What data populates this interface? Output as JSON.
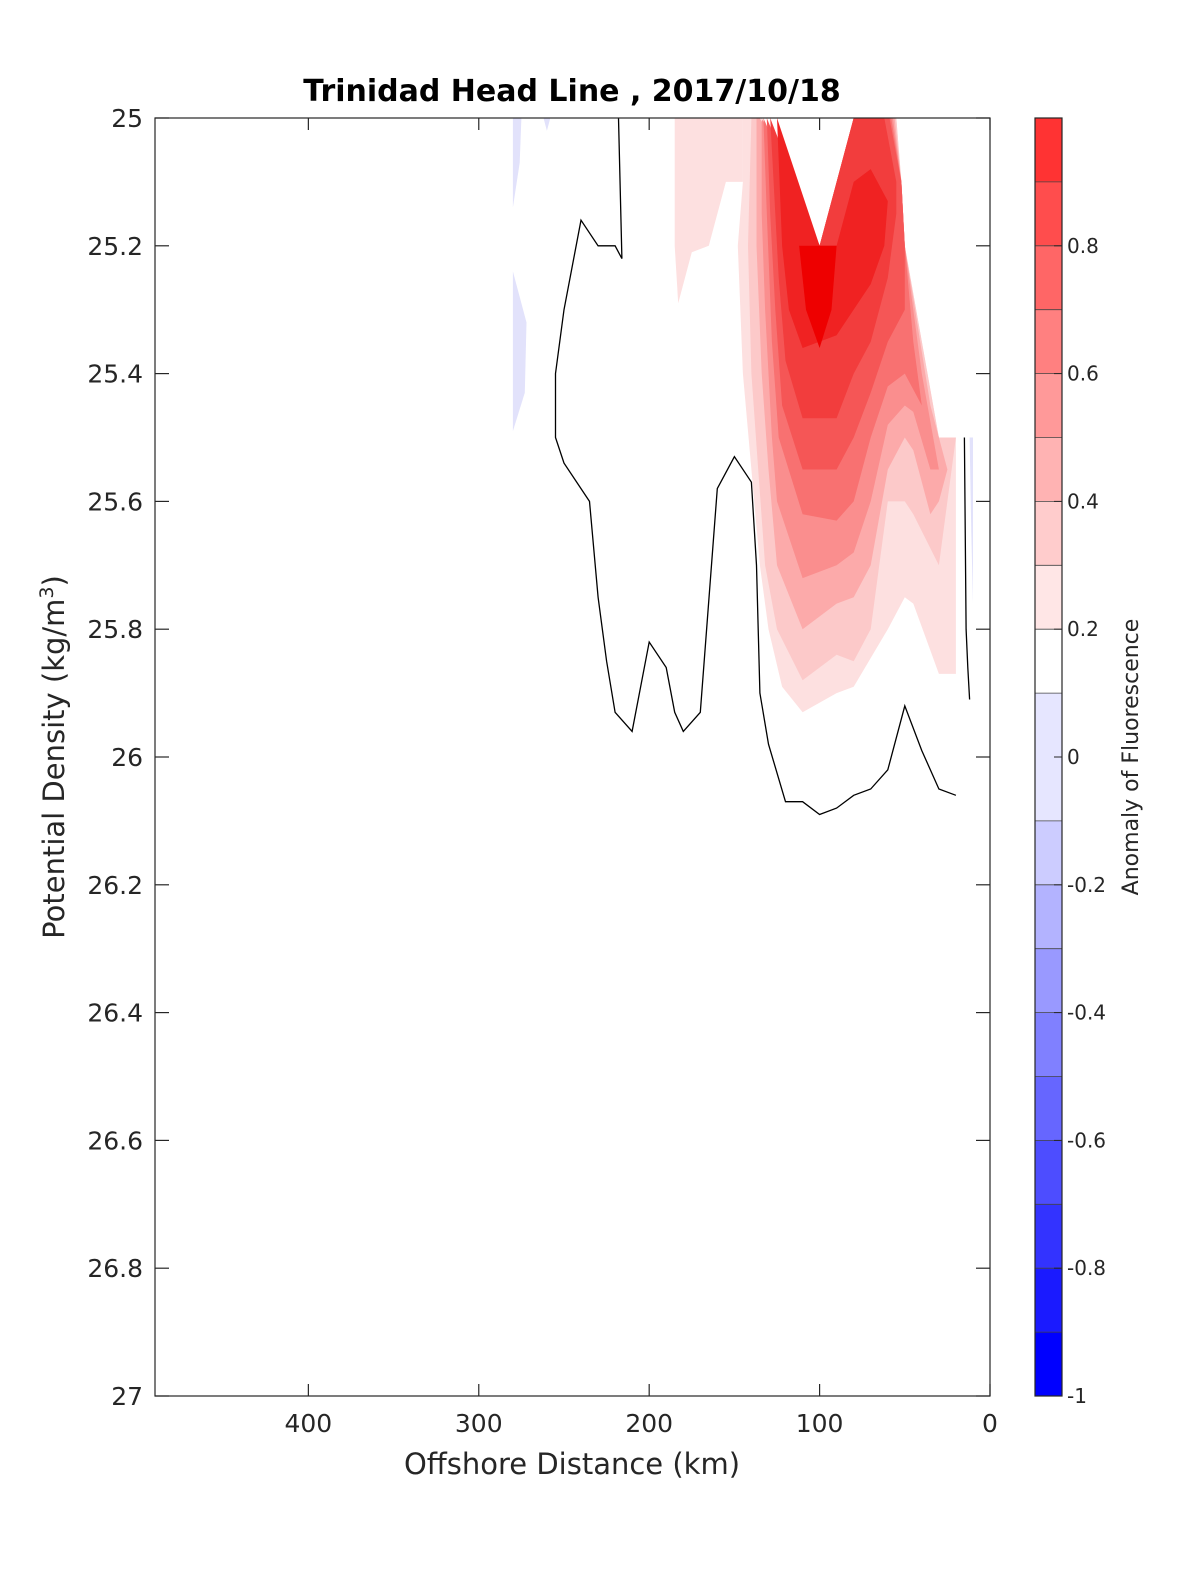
{
  "chart_data": {
    "type": "contourf",
    "title": "Trinidad Head Line , 2017/10/18",
    "xlabel": "Offshore Distance (km)",
    "ylabel": "Potential Density (kg/m³)",
    "ylabel_base": "Potential Density (kg/m",
    "ylabel_sup": "3",
    "ylabel_tail": ")",
    "xlim": [
      490,
      0
    ],
    "x_reversed": true,
    "ylim": [
      25,
      27
    ],
    "y_reversed": true,
    "x_ticks": [
      400,
      300,
      200,
      100,
      0
    ],
    "x_tick_labels": [
      "400",
      "300",
      "200",
      "100",
      "0"
    ],
    "y_ticks": [
      25,
      25.2,
      25.4,
      25.6,
      25.8,
      26,
      26.2,
      26.4,
      26.6,
      26.8,
      27
    ],
    "y_tick_labels": [
      "25",
      "25.2",
      "25.4",
      "25.6",
      "25.8",
      "26",
      "26.2",
      "26.4",
      "26.6",
      "26.8",
      "27"
    ],
    "colorbar": {
      "label": "Anomaly of Fluorescence",
      "range": [
        -1,
        1
      ],
      "levels": [
        -1,
        -0.9,
        -0.8,
        -0.7,
        -0.6,
        -0.5,
        -0.4,
        -0.3,
        -0.2,
        -0.1,
        0.1,
        0.2,
        0.3,
        0.4,
        0.5,
        0.6,
        0.7,
        0.8,
        0.9,
        1.0
      ],
      "tick_values": [
        -1,
        -0.8,
        -0.6,
        -0.4,
        -0.2,
        0,
        0.2,
        0.4,
        0.6,
        0.8
      ],
      "tick_labels": [
        "-1",
        "-0.8",
        "-0.6",
        "-0.4",
        "-0.2",
        "0",
        "0.2",
        "0.4",
        "0.6",
        "0.8"
      ],
      "colors": [
        "#0000ff",
        "#1a1aff",
        "#3333ff",
        "#4d4dff",
        "#6666ff",
        "#8080ff",
        "#9999ff",
        "#b3b3ff",
        "#ccccff",
        "#e6e6ff",
        "#ffffff",
        "#ffe6e6",
        "#ffcccc",
        "#ffb3b3",
        "#ff9999",
        "#ff8080",
        "#ff6666",
        "#ff4d4d",
        "#ff3333",
        "#ff1a1a",
        "#ff0000"
      ]
    },
    "filled_regions": [
      {
        "level": 0.1,
        "color": "#fde0e0",
        "points": [
          [
            185,
            25
          ],
          [
            185,
            25.2
          ],
          [
            183,
            25.29
          ],
          [
            175,
            25.21
          ],
          [
            165,
            25.2
          ],
          [
            155,
            25.1
          ],
          [
            150,
            25.1
          ],
          [
            145,
            25.1
          ],
          [
            145,
            25
          ]
        ]
      },
      {
        "level": 0.1,
        "color": "#fde0e0",
        "points": [
          [
            145,
            25
          ],
          [
            135,
            25
          ],
          [
            100,
            25.2
          ],
          [
            80,
            25
          ],
          [
            55,
            25
          ],
          [
            52,
            25.1
          ],
          [
            50,
            25.2
          ],
          [
            30,
            25.5
          ],
          [
            20,
            25.5
          ],
          [
            20,
            25.6
          ],
          [
            20,
            25.7
          ],
          [
            20,
            25.87
          ],
          [
            30,
            25.87
          ],
          [
            45,
            25.76
          ],
          [
            50,
            25.75
          ],
          [
            60,
            25.8
          ],
          [
            80,
            25.89
          ],
          [
            90,
            25.9
          ],
          [
            110,
            25.93
          ],
          [
            122,
            25.89
          ],
          [
            130,
            25.8
          ],
          [
            135,
            25.7
          ],
          [
            140,
            25.55
          ],
          [
            145,
            25.4
          ],
          [
            148,
            25.2
          ],
          [
            145,
            25.1
          ]
        ]
      },
      {
        "level": 0.2,
        "color": "#fcc9c9",
        "points": [
          [
            135,
            25
          ],
          [
            100,
            25.2
          ],
          [
            80,
            25
          ],
          [
            55,
            25
          ],
          [
            52,
            25.1
          ],
          [
            50,
            25.2
          ],
          [
            30,
            25.5
          ],
          [
            20,
            25.5
          ],
          [
            25,
            25.6
          ],
          [
            30,
            25.7
          ],
          [
            45,
            25.62
          ],
          [
            50,
            25.6
          ],
          [
            60,
            25.6
          ],
          [
            70,
            25.8
          ],
          [
            80,
            25.85
          ],
          [
            90,
            25.84
          ],
          [
            110,
            25.88
          ],
          [
            125,
            25.8
          ],
          [
            132,
            25.7
          ],
          [
            136,
            25.55
          ],
          [
            140,
            25.4
          ],
          [
            142,
            25.2
          ],
          [
            140,
            25
          ]
        ]
      },
      {
        "level": 0.3,
        "color": "#fcaaaa",
        "points": [
          [
            135,
            25
          ],
          [
            100,
            25.2
          ],
          [
            80,
            25
          ],
          [
            56,
            25
          ],
          [
            52,
            25.1
          ],
          [
            50,
            25.2
          ],
          [
            35,
            25.45
          ],
          [
            25,
            25.55
          ],
          [
            30,
            25.6
          ],
          [
            35,
            25.62
          ],
          [
            45,
            25.52
          ],
          [
            50,
            25.5
          ],
          [
            60,
            25.55
          ],
          [
            70,
            25.7
          ],
          [
            80,
            25.75
          ],
          [
            90,
            25.76
          ],
          [
            110,
            25.8
          ],
          [
            125,
            25.7
          ],
          [
            130,
            25.55
          ],
          [
            134,
            25.4
          ],
          [
            137,
            25.2
          ],
          [
            137,
            25
          ]
        ]
      },
      {
        "level": 0.4,
        "color": "#fa8e8e",
        "points": [
          [
            134,
            25
          ],
          [
            100,
            25.2
          ],
          [
            80,
            25
          ],
          [
            57,
            25
          ],
          [
            52,
            25.1
          ],
          [
            50,
            25.2
          ],
          [
            40,
            25.4
          ],
          [
            30,
            25.55
          ],
          [
            35,
            25.55
          ],
          [
            45,
            25.46
          ],
          [
            50,
            25.45
          ],
          [
            60,
            25.48
          ],
          [
            70,
            25.6
          ],
          [
            80,
            25.68
          ],
          [
            90,
            25.7
          ],
          [
            110,
            25.72
          ],
          [
            125,
            25.6
          ],
          [
            128,
            25.5
          ],
          [
            132,
            25.3
          ],
          [
            134,
            25.15
          ]
        ]
      },
      {
        "level": 0.5,
        "color": "#f87171",
        "points": [
          [
            133,
            25
          ],
          [
            100,
            25.2
          ],
          [
            80,
            25
          ],
          [
            58,
            25
          ],
          [
            52,
            25.1
          ],
          [
            50,
            25.2
          ],
          [
            45,
            25.35
          ],
          [
            40,
            25.45
          ],
          [
            50,
            25.4
          ],
          [
            60,
            25.42
          ],
          [
            70,
            25.5
          ],
          [
            80,
            25.6
          ],
          [
            90,
            25.63
          ],
          [
            110,
            25.62
          ],
          [
            124,
            25.5
          ],
          [
            128,
            25.35
          ],
          [
            131,
            25.15
          ]
        ]
      },
      {
        "level": 0.6,
        "color": "#f55656",
        "points": [
          [
            131,
            25
          ],
          [
            100,
            25.2
          ],
          [
            80,
            25
          ],
          [
            59,
            25
          ],
          [
            52,
            25.1
          ],
          [
            50,
            25.2
          ],
          [
            50,
            25.3
          ],
          [
            60,
            25.35
          ],
          [
            70,
            25.43
          ],
          [
            80,
            25.5
          ],
          [
            90,
            25.55
          ],
          [
            110,
            25.55
          ],
          [
            122,
            25.45
          ],
          [
            126,
            25.3
          ],
          [
            129,
            25.15
          ]
        ]
      },
      {
        "level": 0.7,
        "color": "#f23d3d",
        "points": [
          [
            129,
            25
          ],
          [
            100,
            25.2
          ],
          [
            80,
            25
          ],
          [
            62,
            25
          ],
          [
            55,
            25.1
          ],
          [
            55,
            25.15
          ],
          [
            60,
            25.25
          ],
          [
            70,
            25.35
          ],
          [
            80,
            25.4
          ],
          [
            90,
            25.47
          ],
          [
            110,
            25.47
          ],
          [
            120,
            25.38
          ],
          [
            124,
            25.25
          ],
          [
            127,
            25.1
          ]
        ]
      },
      {
        "level": 0.8,
        "color": "#f02222",
        "points": [
          [
            125,
            25
          ],
          [
            110,
            25.12
          ],
          [
            100,
            25.2
          ],
          [
            90,
            25.2
          ],
          [
            80,
            25.1
          ],
          [
            70,
            25.08
          ],
          [
            60,
            25.13
          ],
          [
            62,
            25.2
          ],
          [
            70,
            25.26
          ],
          [
            90,
            25.34
          ],
          [
            110,
            25.36
          ],
          [
            118,
            25.3
          ],
          [
            122,
            25.2
          ]
        ]
      },
      {
        "level": 0.9,
        "color": "#ee0000",
        "points": [
          [
            112,
            25.2
          ],
          [
            100,
            25.2
          ],
          [
            90,
            25.2
          ],
          [
            93,
            25.3
          ],
          [
            100,
            25.36
          ],
          [
            108,
            25.3
          ]
        ]
      },
      {
        "level": -0.1,
        "color": "#e2e2fb",
        "points": [
          [
            280,
            25
          ],
          [
            275,
            25
          ],
          [
            276,
            25.07
          ],
          [
            280,
            25.14
          ]
        ]
      },
      {
        "level": -0.1,
        "color": "#e2e2fb",
        "points": [
          [
            262,
            25
          ],
          [
            258,
            25
          ],
          [
            260,
            25.02
          ]
        ]
      },
      {
        "level": -0.1,
        "color": "#e2e2fb",
        "points": [
          [
            280,
            25.24
          ],
          [
            272,
            25.32
          ],
          [
            273,
            25.43
          ],
          [
            280,
            25.49
          ]
        ]
      },
      {
        "level": -0.1,
        "color": "#e2e2fb",
        "points": [
          [
            12,
            25.5
          ],
          [
            10,
            25.5
          ],
          [
            10,
            25.76
          ],
          [
            11,
            25.65
          ]
        ]
      }
    ],
    "zero_contours": [
      {
        "points": [
          [
            218,
            25
          ],
          [
            216,
            25.22
          ],
          [
            220,
            25.2
          ],
          [
            230,
            25.2
          ],
          [
            240,
            25.16
          ],
          [
            250,
            25.3
          ],
          [
            255,
            25.4
          ],
          [
            255,
            25.5
          ],
          [
            250,
            25.54
          ],
          [
            235,
            25.6
          ],
          [
            230,
            25.75
          ],
          [
            225,
            25.85
          ],
          [
            220,
            25.93
          ],
          [
            210,
            25.96
          ],
          [
            200,
            25.82
          ],
          [
            190,
            25.86
          ],
          [
            185,
            25.93
          ],
          [
            180,
            25.96
          ],
          [
            170,
            25.93
          ],
          [
            160,
            25.58
          ],
          [
            150,
            25.53
          ],
          [
            140,
            25.57
          ],
          [
            137,
            25.7
          ],
          [
            135,
            25.9
          ],
          [
            130,
            25.98
          ],
          [
            120,
            26.07
          ],
          [
            110,
            26.07
          ],
          [
            100,
            26.09
          ],
          [
            90,
            26.08
          ],
          [
            80,
            26.06
          ],
          [
            70,
            26.05
          ],
          [
            60,
            26.02
          ],
          [
            50,
            25.92
          ],
          [
            40,
            25.99
          ],
          [
            30,
            26.05
          ],
          [
            20,
            26.06
          ]
        ]
      },
      {
        "points": [
          [
            15,
            25.5
          ],
          [
            14,
            25.8
          ],
          [
            13,
            25.86
          ],
          [
            12,
            25.91
          ]
        ]
      }
    ]
  }
}
